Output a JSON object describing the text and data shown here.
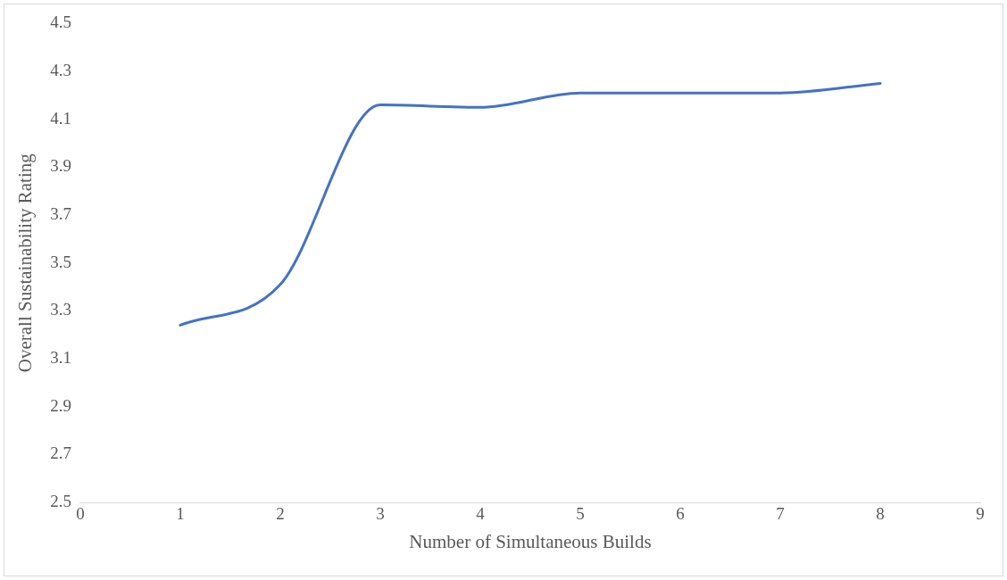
{
  "chart_data": {
    "type": "line",
    "xlabel": "Number of Simultaneous Builds",
    "ylabel": "Overall Sustainability Rating",
    "x": [
      1,
      2,
      3,
      4,
      5,
      6,
      7,
      8
    ],
    "series": [
      {
        "color": "#4472c4",
        "values": [
          3.24,
          3.41,
          4.16,
          4.15,
          4.21,
          4.21,
          4.21,
          4.25
        ]
      }
    ],
    "xlim": [
      0,
      9
    ],
    "xticks": [
      0,
      1,
      2,
      3,
      4,
      5,
      6,
      7,
      8,
      9
    ],
    "ylim": [
      2.5,
      4.5
    ],
    "yticks": [
      2.5,
      2.7,
      2.9,
      3.1,
      3.3,
      3.5,
      3.7,
      3.9,
      4.1,
      4.3,
      4.5
    ],
    "grid": false,
    "legend": false,
    "marker": "none",
    "line_style": "solid"
  }
}
